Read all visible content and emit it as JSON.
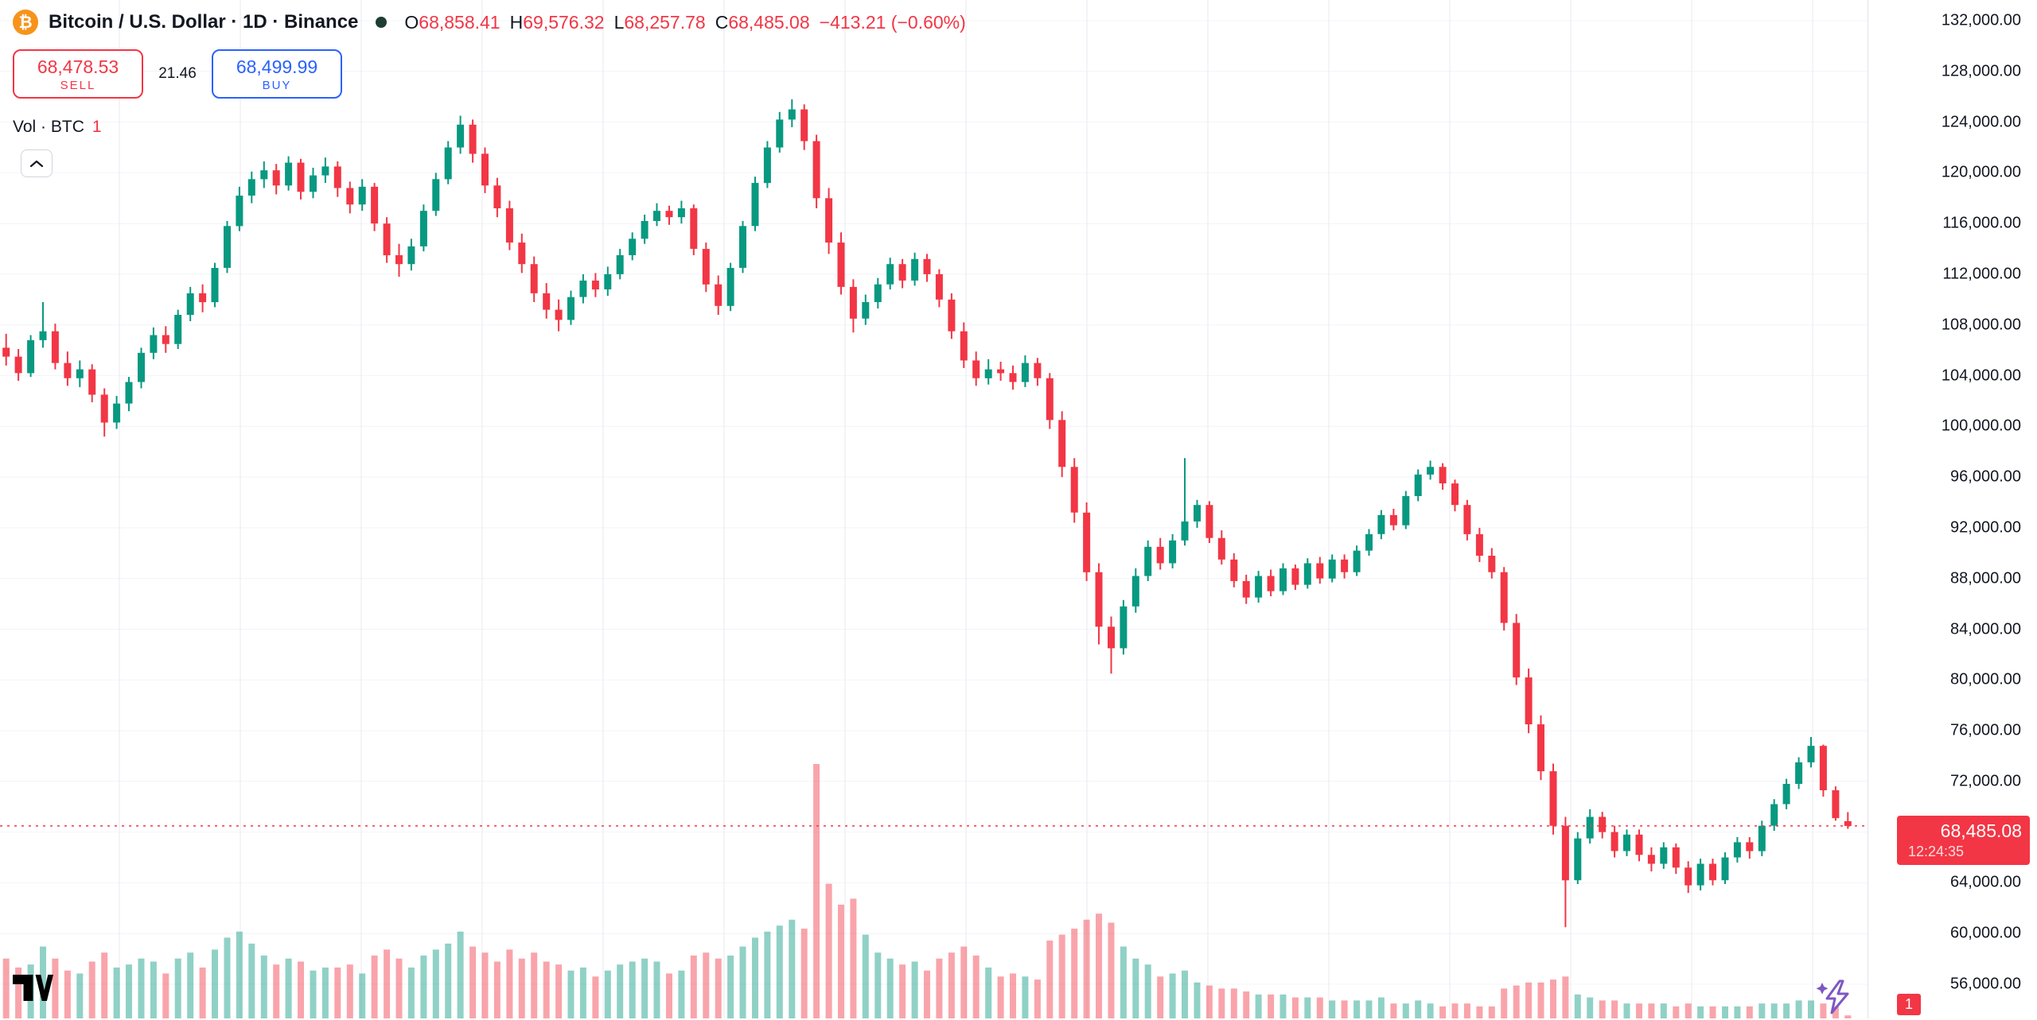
{
  "header": {
    "symbol_icon_glyph": "₿",
    "symbol_title": "Bitcoin / U.S. Dollar · 1D · Binance",
    "ohlc": {
      "o_label": "O",
      "o_value": "68,858.41",
      "h_label": "H",
      "h_value": "69,576.32",
      "l_label": "L",
      "l_value": "68,257.78",
      "c_label": "C",
      "c_value": "68,485.08",
      "change": "−413.21 (−0.60%)"
    },
    "sell": {
      "price": "68,478.53",
      "label": "SELL"
    },
    "spread": "21.46",
    "buy": {
      "price": "68,499.99",
      "label": "BUY"
    },
    "volume": {
      "label": "Vol · BTC",
      "value": "1"
    }
  },
  "price_label": {
    "price": "68,485.08",
    "countdown": "12:24:35"
  },
  "axis_badge": {
    "volume": "1"
  },
  "colors": {
    "up": "#089981",
    "down": "#F23645",
    "buy_blue": "#2962FF",
    "bitcoin_orange": "#F7931A",
    "text_dark": "#131722",
    "grid_v": "#E8EAF0",
    "grid_h": "#F2F4F8",
    "axis_border": "#E0E3EB",
    "status_dot": "#1E3D33",
    "boost_purple": "#7E57C2",
    "volume_up_alpha": "rgba(8,153,129,0.45)",
    "volume_down_alpha": "rgba(242,54,69,0.45)"
  },
  "chart_data": {
    "type": "candlestick",
    "title": "Bitcoin / U.S. Dollar · 1D · Binance",
    "symbol": "BTCUSD",
    "interval": "1D",
    "exchange": "Binance",
    "ylim": [
      56000,
      132000
    ],
    "y_tick_step": 4000,
    "grid": "on",
    "legend_position": "top-left",
    "last_price": 68485.08,
    "last_candle_ohlc": {
      "open": 68858.41,
      "high": 69576.32,
      "low": 68257.78,
      "close": 68485.08
    },
    "change": -413.21,
    "change_pct": -0.6,
    "current_volume_btc": 1,
    "y_ticks": [
      {
        "value": 132000,
        "label": "132,000.00"
      },
      {
        "value": 128000,
        "label": "128,000.00"
      },
      {
        "value": 124000,
        "label": "124,000.00"
      },
      {
        "value": 120000,
        "label": "120,000.00"
      },
      {
        "value": 116000,
        "label": "116,000.00"
      },
      {
        "value": 112000,
        "label": "112,000.00"
      },
      {
        "value": 108000,
        "label": "108,000.00"
      },
      {
        "value": 104000,
        "label": "104,000.00"
      },
      {
        "value": 100000,
        "label": "100,000.00"
      },
      {
        "value": 96000,
        "label": "96,000.00"
      },
      {
        "value": 92000,
        "label": "92,000.00"
      },
      {
        "value": 88000,
        "label": "88,000.00"
      },
      {
        "value": 84000,
        "label": "84,000.00"
      },
      {
        "value": 80000,
        "label": "80,000.00"
      },
      {
        "value": 76000,
        "label": "76,000.00"
      },
      {
        "value": 72000,
        "label": "72,000.00"
      },
      {
        "value": 68000,
        "label": "68,000.00"
      },
      {
        "value": 64000,
        "label": "64,000.00"
      },
      {
        "value": 60000,
        "label": "60,000.00"
      },
      {
        "value": 56000,
        "label": "56,000.00"
      }
    ],
    "candles_format": [
      "open",
      "high",
      "low",
      "close",
      "volume_rel"
    ],
    "candles": [
      [
        106200,
        107300,
        104800,
        105500,
        20
      ],
      [
        105500,
        106100,
        103600,
        104200,
        17
      ],
      [
        104200,
        107200,
        103900,
        106800,
        18
      ],
      [
        106800,
        109800,
        106200,
        107500,
        24
      ],
      [
        107500,
        108100,
        104500,
        105000,
        20
      ],
      [
        105000,
        105900,
        103200,
        103800,
        16
      ],
      [
        103800,
        105200,
        103100,
        104500,
        15
      ],
      [
        104500,
        104900,
        101900,
        102500,
        19
      ],
      [
        102500,
        103000,
        99200,
        100300,
        22
      ],
      [
        100300,
        102400,
        99800,
        101800,
        17
      ],
      [
        101800,
        103900,
        101200,
        103500,
        18
      ],
      [
        103500,
        106200,
        103000,
        105800,
        20
      ],
      [
        105800,
        107800,
        105300,
        107200,
        19
      ],
      [
        107200,
        107900,
        105800,
        106500,
        15
      ],
      [
        106500,
        109200,
        106100,
        108800,
        20
      ],
      [
        108800,
        111000,
        108300,
        110500,
        22
      ],
      [
        110500,
        111200,
        109000,
        109800,
        17
      ],
      [
        109800,
        112900,
        109400,
        112500,
        23
      ],
      [
        112500,
        116200,
        112100,
        115800,
        27
      ],
      [
        115800,
        118900,
        115400,
        118200,
        29
      ],
      [
        118200,
        120100,
        117600,
        119500,
        25
      ],
      [
        119500,
        120900,
        118800,
        120200,
        21
      ],
      [
        120200,
        120700,
        118300,
        119000,
        18
      ],
      [
        119000,
        121300,
        118600,
        120800,
        20
      ],
      [
        120800,
        121100,
        117900,
        118500,
        19
      ],
      [
        118500,
        120400,
        118000,
        119800,
        16
      ],
      [
        119800,
        121200,
        119200,
        120500,
        17
      ],
      [
        120500,
        120900,
        118100,
        118800,
        17
      ],
      [
        118800,
        119300,
        116800,
        117500,
        18
      ],
      [
        117500,
        119500,
        117000,
        118900,
        15
      ],
      [
        118900,
        119200,
        115400,
        116000,
        21
      ],
      [
        116000,
        116500,
        112900,
        113500,
        23
      ],
      [
        113500,
        114400,
        111800,
        112800,
        20
      ],
      [
        112800,
        114800,
        112300,
        114200,
        17
      ],
      [
        114200,
        117500,
        113800,
        117000,
        21
      ],
      [
        117000,
        120000,
        116600,
        119500,
        23
      ],
      [
        119500,
        122500,
        119100,
        122000,
        25
      ],
      [
        122000,
        124500,
        121500,
        123800,
        29
      ],
      [
        123800,
        124200,
        120800,
        121500,
        24
      ],
      [
        121500,
        122000,
        118400,
        119000,
        22
      ],
      [
        119000,
        119600,
        116500,
        117200,
        19
      ],
      [
        117200,
        117800,
        113900,
        114500,
        23
      ],
      [
        114500,
        115200,
        112100,
        112800,
        20
      ],
      [
        112800,
        113400,
        109800,
        110500,
        22
      ],
      [
        110500,
        111300,
        108500,
        109200,
        19
      ],
      [
        109200,
        110000,
        107500,
        108400,
        18
      ],
      [
        108400,
        110700,
        108000,
        110200,
        16
      ],
      [
        110200,
        112000,
        109700,
        111500,
        17
      ],
      [
        111500,
        112100,
        110200,
        110800,
        14
      ],
      [
        110800,
        112600,
        110300,
        112000,
        16
      ],
      [
        112000,
        114000,
        111600,
        113500,
        18
      ],
      [
        113500,
        115300,
        113100,
        114800,
        19
      ],
      [
        114800,
        116700,
        114400,
        116200,
        20
      ],
      [
        116200,
        117600,
        115800,
        117000,
        19
      ],
      [
        117000,
        117400,
        115900,
        116500,
        15
      ],
      [
        116500,
        117800,
        116000,
        117200,
        16
      ],
      [
        117200,
        117500,
        113500,
        114000,
        21
      ],
      [
        114000,
        114500,
        110600,
        111200,
        22
      ],
      [
        111200,
        111900,
        108800,
        109500,
        20
      ],
      [
        109500,
        112900,
        109100,
        112500,
        21
      ],
      [
        112500,
        116200,
        112100,
        115800,
        24
      ],
      [
        115800,
        119700,
        115400,
        119200,
        27
      ],
      [
        119200,
        122500,
        118800,
        122000,
        29
      ],
      [
        122000,
        124800,
        121600,
        124200,
        31
      ],
      [
        124200,
        125800,
        123600,
        125000,
        33
      ],
      [
        125000,
        125400,
        121800,
        122500,
        30
      ],
      [
        122500,
        123000,
        117200,
        118000,
        85
      ],
      [
        118000,
        118800,
        113600,
        114500,
        45
      ],
      [
        114500,
        115300,
        110400,
        111000,
        38
      ],
      [
        111000,
        111600,
        107400,
        108500,
        40
      ],
      [
        108500,
        110400,
        108000,
        109800,
        28
      ],
      [
        109800,
        111700,
        109300,
        111200,
        22
      ],
      [
        111200,
        113300,
        110800,
        112800,
        20
      ],
      [
        112800,
        113200,
        110900,
        111500,
        18
      ],
      [
        111500,
        113700,
        111100,
        113200,
        19
      ],
      [
        113200,
        113600,
        111400,
        112000,
        16
      ],
      [
        112000,
        112400,
        109400,
        110000,
        20
      ],
      [
        110000,
        110500,
        106900,
        107500,
        22
      ],
      [
        107500,
        108200,
        104600,
        105200,
        24
      ],
      [
        105200,
        105900,
        103200,
        103800,
        21
      ],
      [
        103800,
        105300,
        103300,
        104500,
        17
      ],
      [
        104500,
        105100,
        103600,
        104200,
        14
      ],
      [
        104200,
        104800,
        102900,
        103500,
        15
      ],
      [
        103500,
        105600,
        103100,
        105000,
        14
      ],
      [
        105000,
        105400,
        103200,
        103800,
        13
      ],
      [
        103800,
        104200,
        99800,
        100500,
        26
      ],
      [
        100500,
        101200,
        96000,
        96800,
        28
      ],
      [
        96800,
        97500,
        92400,
        93200,
        30
      ],
      [
        93200,
        94000,
        87800,
        88500,
        33
      ],
      [
        88500,
        89200,
        82800,
        84200,
        35
      ],
      [
        84200,
        85000,
        80500,
        82500,
        32
      ],
      [
        82500,
        86300,
        82000,
        85800,
        24
      ],
      [
        85800,
        88800,
        85300,
        88200,
        20
      ],
      [
        88200,
        91000,
        87800,
        90500,
        18
      ],
      [
        90500,
        91200,
        88700,
        89200,
        14
      ],
      [
        89200,
        91500,
        88800,
        91000,
        15
      ],
      [
        91000,
        97500,
        90600,
        92500,
        16
      ],
      [
        92500,
        94200,
        92000,
        93800,
        12
      ],
      [
        93800,
        94100,
        90800,
        91200,
        11
      ],
      [
        91200,
        91800,
        89100,
        89500,
        10
      ],
      [
        89500,
        90000,
        87300,
        87800,
        10
      ],
      [
        87800,
        88300,
        86000,
        86500,
        9
      ],
      [
        86500,
        88600,
        86100,
        88200,
        8
      ],
      [
        88200,
        88700,
        86600,
        87000,
        8
      ],
      [
        87000,
        89200,
        86700,
        88800,
        8
      ],
      [
        88800,
        89100,
        87100,
        87500,
        7
      ],
      [
        87500,
        89600,
        87200,
        89200,
        7
      ],
      [
        89200,
        89700,
        87600,
        88000,
        7
      ],
      [
        88000,
        89900,
        87700,
        89500,
        6
      ],
      [
        89500,
        89900,
        88000,
        88500,
        6
      ],
      [
        88500,
        90600,
        88200,
        90200,
        6
      ],
      [
        90200,
        91900,
        89800,
        91500,
        6
      ],
      [
        91500,
        93400,
        91100,
        93000,
        7
      ],
      [
        93000,
        93500,
        91800,
        92200,
        5
      ],
      [
        92200,
        94900,
        91900,
        94500,
        5
      ],
      [
        94500,
        96600,
        94100,
        96200,
        6
      ],
      [
        96200,
        97300,
        95800,
        96800,
        5
      ],
      [
        96800,
        97100,
        95000,
        95500,
        4
      ],
      [
        95500,
        95800,
        93300,
        93800,
        5
      ],
      [
        93800,
        94200,
        91000,
        91500,
        5
      ],
      [
        91500,
        92000,
        89300,
        89800,
        4
      ],
      [
        89800,
        90400,
        88000,
        88500,
        4
      ],
      [
        88500,
        88900,
        83900,
        84500,
        10
      ],
      [
        84500,
        85200,
        79600,
        80200,
        11
      ],
      [
        80200,
        80900,
        75800,
        76500,
        12
      ],
      [
        76500,
        77200,
        72100,
        72800,
        12
      ],
      [
        72800,
        73400,
        67800,
        68500,
        13
      ],
      [
        68500,
        69200,
        60500,
        64200,
        14
      ],
      [
        64200,
        68000,
        63900,
        67500,
        8
      ],
      [
        67500,
        69800,
        67100,
        69200,
        7
      ],
      [
        69200,
        69600,
        67500,
        68000,
        6
      ],
      [
        68000,
        68500,
        66000,
        66500,
        6
      ],
      [
        66500,
        68200,
        66100,
        67800,
        5
      ],
      [
        67800,
        68200,
        65700,
        66200,
        5
      ],
      [
        66200,
        66800,
        64900,
        65500,
        5
      ],
      [
        65500,
        67200,
        65100,
        66800,
        5
      ],
      [
        66800,
        67100,
        64700,
        65200,
        4
      ],
      [
        65200,
        65700,
        63200,
        63800,
        5
      ],
      [
        63800,
        65900,
        63400,
        65500,
        4
      ],
      [
        65500,
        65900,
        63800,
        64200,
        4
      ],
      [
        64200,
        66400,
        63900,
        66000,
        4
      ],
      [
        66000,
        67600,
        65600,
        67200,
        4
      ],
      [
        67200,
        67600,
        65900,
        66500,
        4
      ],
      [
        66500,
        68900,
        66100,
        68500,
        5
      ],
      [
        68500,
        70600,
        68100,
        70200,
        5
      ],
      [
        70200,
        72200,
        69800,
        71800,
        5
      ],
      [
        71800,
        73900,
        71400,
        73500,
        6
      ],
      [
        73500,
        75500,
        73100,
        74800,
        6
      ],
      [
        74800,
        74900,
        70800,
        71300,
        5
      ],
      [
        71300,
        71600,
        68900,
        69100,
        4
      ],
      [
        68858.41,
        69576.32,
        68257.78,
        68485.08,
        1
      ]
    ]
  }
}
